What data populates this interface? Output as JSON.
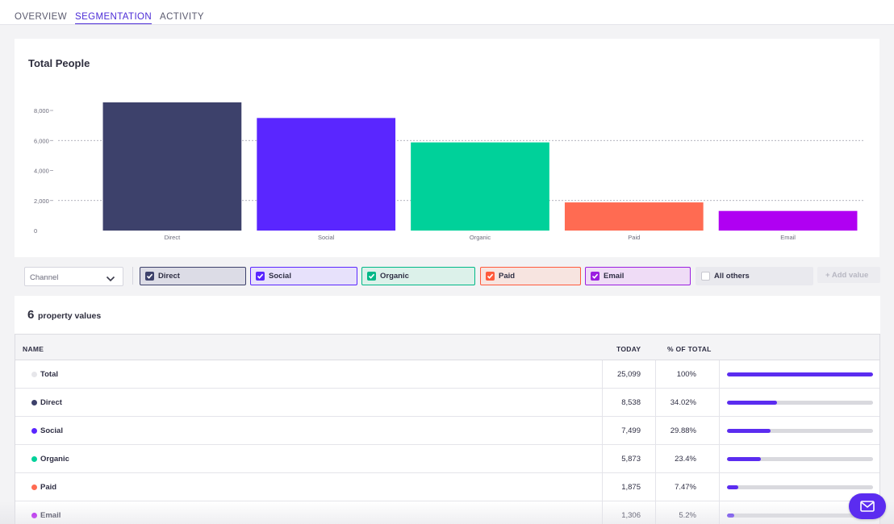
{
  "tabs": [
    {
      "label": "OVERVIEW"
    },
    {
      "label": "SEGMENTATION"
    },
    {
      "label": "ACTIVITY"
    }
  ],
  "chart_title": "Total People",
  "chart_data": {
    "type": "bar",
    "title": "Total People",
    "xlabel": "",
    "ylabel": "",
    "categories": [
      "Direct",
      "Social",
      "Organic",
      "Paid",
      "Email"
    ],
    "values": [
      8538,
      7499,
      5873,
      1875,
      1306
    ],
    "colors": [
      "#3d416b",
      "#5a26ff",
      "#00d19a",
      "#ff6b52",
      "#b000f2"
    ],
    "yticks": [
      0,
      2000,
      4000,
      6000,
      8000
    ],
    "ytick_labels": [
      "0",
      "2,000",
      "4,000",
      "6,000",
      "8,000"
    ],
    "ylim": [
      0,
      8538
    ],
    "grid": "dashed at 2,000 and 6,000"
  },
  "controls": {
    "channel_select": "Channel",
    "add_value": "Add value",
    "chips": [
      {
        "label": "Direct",
        "color": "#3d416b",
        "bg": "#dcdce6",
        "checked": true
      },
      {
        "label": "Social",
        "color": "#5a26ff",
        "bg": "#e7e1fb",
        "checked": true
      },
      {
        "label": "Organic",
        "color": "#00b887",
        "bg": "#dcf1ea",
        "checked": true
      },
      {
        "label": "Paid",
        "color": "#ff5a3c",
        "bg": "#f7e4e0",
        "checked": true
      },
      {
        "label": "Email",
        "color": "#9b1ee0",
        "bg": "#efdcf6",
        "checked": true
      },
      {
        "label": "All others",
        "checked": false
      }
    ]
  },
  "property": {
    "count": "6",
    "label": "property values"
  },
  "table": {
    "headers": {
      "name": "NAME",
      "today": "TODAY",
      "pct": "% OF TOTAL"
    },
    "rows": [
      {
        "name": "Total",
        "today": "25,099",
        "pct": "100%",
        "share": 1.0,
        "dot": "#e6e6ea"
      },
      {
        "name": "Direct",
        "today": "8,538",
        "pct": "34.02%",
        "share": 0.3402,
        "dot": "#3d416b"
      },
      {
        "name": "Social",
        "today": "7,499",
        "pct": "29.88%",
        "share": 0.2988,
        "dot": "#5a26ff"
      },
      {
        "name": "Organic",
        "today": "5,873",
        "pct": "23.4%",
        "share": 0.234,
        "dot": "#00d19a"
      },
      {
        "name": "Paid",
        "today": "1,875",
        "pct": "7.47%",
        "share": 0.0747,
        "dot": "#ff6b52"
      },
      {
        "name": "Email",
        "today": "1,306",
        "pct": "5.2%",
        "share": 0.052,
        "dot": "#b000f2"
      }
    ]
  },
  "icons": {
    "chevron": "chevron-down-icon",
    "check": "check-icon",
    "plus": "plus-icon",
    "mail": "mail-icon"
  },
  "accent_color": "#5b2cf0"
}
